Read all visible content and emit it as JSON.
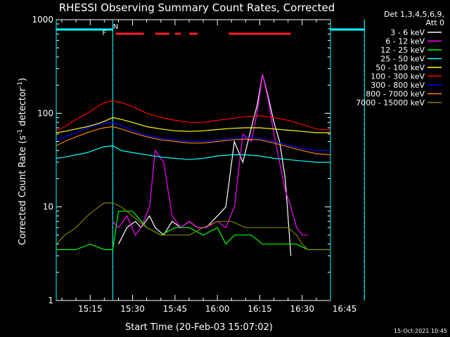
{
  "chart_data": {
    "type": "line",
    "title": "RHESSI Observing Summary Count Rates, Corrected",
    "xlabel": "Start Time (20-Feb-03 15:07:02)",
    "ylabel_main": "Corrected Count Rate (s",
    "ylabel_sup1": "-1",
    "ylabel_mid": " detector",
    "ylabel_sup2": "-1",
    "ylabel_end": ")",
    "y_scale": "log",
    "ylim": [
      1,
      1000
    ],
    "xlim_minutes": [
      3,
      100
    ],
    "x_tick_labels": [
      "15:15",
      "15:30",
      "15:45",
      "16:00",
      "16:15",
      "16:30",
      "16:45"
    ],
    "x_tick_minutes": [
      15,
      30,
      45,
      60,
      75,
      90,
      105
    ],
    "y_tick_labels": [
      "1",
      "10",
      "100",
      "1000"
    ],
    "y_tick_values": [
      1,
      10,
      100,
      1000
    ],
    "legend_title_1": "Det 1,3,4,5,6,9,",
    "legend_title_2": "Att 0",
    "legend_placement": "right",
    "attenuator_dashed_lines_min": [
      23,
      112
    ],
    "night_segments_min": [
      [
        0,
        23
      ],
      [
        112,
        120
      ]
    ],
    "flag_labels": [
      {
        "text": "F",
        "min": 20,
        "color": "#ff2020"
      },
      {
        "text": "N",
        "min": 24,
        "color": "#00ffff"
      }
    ],
    "flare_segments_min": [
      [
        24,
        34
      ],
      [
        38,
        43
      ],
      [
        45,
        47
      ],
      [
        50,
        53
      ],
      [
        64,
        86
      ]
    ],
    "series": [
      {
        "name": "3 - 6 keV",
        "color": "#ffffff",
        "x": [
          3,
          15,
          23,
          25,
          28,
          31,
          33,
          36,
          38,
          41,
          44,
          47,
          50,
          53,
          56,
          60,
          63,
          66,
          69,
          72,
          74,
          76,
          78,
          80,
          82,
          84,
          86,
          88
        ],
        "y": [
          null,
          null,
          null,
          4,
          6,
          7,
          6,
          8,
          6,
          5,
          7,
          6,
          7,
          6,
          6,
          8,
          10,
          50,
          30,
          70,
          120,
          260,
          150,
          80,
          50,
          20,
          3,
          null
        ]
      },
      {
        "name": "6 - 12 keV",
        "color": "#ff00ff",
        "x": [
          23,
          25,
          28,
          31,
          33,
          36,
          38,
          41,
          44,
          47,
          50,
          53,
          56,
          60,
          63,
          66,
          69,
          72,
          74,
          76,
          78,
          80,
          82,
          84,
          86,
          88,
          90,
          92
        ],
        "y": [
          7,
          6,
          8,
          5,
          6,
          10,
          40,
          30,
          8,
          6,
          7,
          6,
          6,
          7,
          6,
          10,
          60,
          50,
          100,
          260,
          140,
          60,
          30,
          15,
          10,
          6,
          5,
          5
        ]
      },
      {
        "name": "12 - 25 keV",
        "color": "#00ff00",
        "x": [
          3,
          10,
          15,
          20,
          23,
          25,
          30,
          35,
          40,
          45,
          50,
          55,
          60,
          63,
          66,
          69,
          72,
          76,
          80,
          84,
          88,
          92,
          96,
          100
        ],
        "y": [
          3.5,
          3.5,
          4,
          3.5,
          3.5,
          9,
          9,
          6,
          5,
          6,
          6,
          5,
          6,
          4,
          5,
          5,
          5,
          4,
          4,
          4,
          4,
          3.5,
          3.5,
          3.5
        ]
      },
      {
        "name": "25 - 50 keV",
        "color": "#00ffff",
        "x": [
          3,
          6,
          10,
          14,
          18,
          20,
          23,
          26,
          30,
          35,
          40,
          45,
          50,
          55,
          60,
          65,
          70,
          75,
          80,
          85,
          90,
          95,
          100
        ],
        "y": [
          33,
          34,
          36,
          38,
          42,
          44,
          45,
          40,
          38,
          36,
          34,
          33,
          32,
          33,
          35,
          36,
          36,
          35,
          33,
          32,
          31,
          30,
          30
        ]
      },
      {
        "name": "50 - 100 keV",
        "color": "#ffff00",
        "x": [
          3,
          6,
          10,
          14,
          18,
          20,
          23,
          26,
          30,
          35,
          40,
          45,
          50,
          55,
          60,
          65,
          70,
          75,
          80,
          85,
          90,
          95,
          100
        ],
        "y": [
          62,
          64,
          68,
          72,
          78,
          82,
          90,
          86,
          80,
          72,
          68,
          65,
          64,
          65,
          67,
          69,
          70,
          70,
          68,
          66,
          64,
          62,
          62
        ]
      },
      {
        "name": "100 - 300 keV",
        "color": "#ff0000",
        "x": [
          3,
          6,
          10,
          14,
          18,
          20,
          23,
          26,
          30,
          35,
          40,
          45,
          50,
          55,
          60,
          65,
          70,
          75,
          80,
          85,
          90,
          95,
          100
        ],
        "y": [
          65,
          72,
          86,
          100,
          120,
          130,
          136,
          130,
          118,
          100,
          90,
          84,
          80,
          80,
          84,
          88,
          92,
          94,
          90,
          84,
          76,
          68,
          66
        ]
      },
      {
        "name": "300 - 800 keV",
        "color": "#0000ff",
        "x": [
          3,
          6,
          10,
          14,
          18,
          20,
          23,
          26,
          30,
          35,
          40,
          45,
          50,
          55,
          60,
          65,
          70,
          75,
          80,
          85,
          90,
          95,
          100
        ],
        "y": [
          52,
          56,
          62,
          70,
          76,
          78,
          80,
          74,
          66,
          58,
          54,
          52,
          50,
          50,
          52,
          54,
          55,
          54,
          50,
          46,
          42,
          40,
          40
        ]
      },
      {
        "name": "800 - 7000 keV",
        "color": "#ff8000",
        "x": [
          3,
          6,
          10,
          14,
          18,
          20,
          23,
          26,
          30,
          35,
          40,
          45,
          50,
          55,
          60,
          65,
          70,
          75,
          80,
          85,
          90,
          95,
          100
        ],
        "y": [
          45,
          50,
          56,
          62,
          68,
          70,
          72,
          68,
          62,
          56,
          52,
          50,
          48,
          48,
          50,
          52,
          53,
          52,
          48,
          44,
          40,
          37,
          36
        ]
      },
      {
        "name": "7000 - 15000 keV",
        "color": "#808000",
        "x": [
          3,
          6,
          10,
          14,
          18,
          20,
          23,
          26,
          30,
          35,
          40,
          45,
          50,
          55,
          60,
          65,
          70,
          75,
          80,
          85,
          88,
          90,
          92,
          96,
          100
        ],
        "y": [
          4,
          5,
          6,
          8,
          10,
          11,
          11,
          10,
          8,
          6,
          5,
          5,
          5,
          6,
          7,
          7,
          6,
          6,
          6,
          6,
          5,
          4,
          3.5,
          3.5,
          3.5
        ]
      }
    ]
  },
  "footer": {
    "date_stamp": "15-Oct-2021 10:45"
  }
}
